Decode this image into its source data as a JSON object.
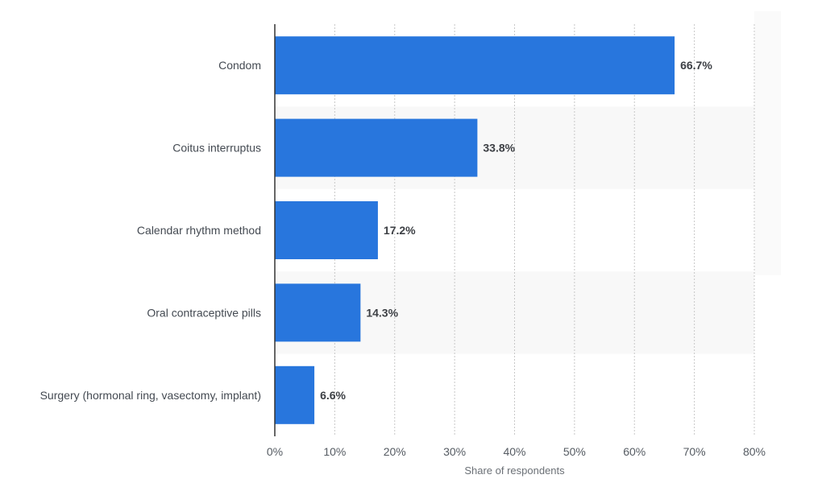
{
  "chart_data": {
    "type": "bar",
    "orientation": "horizontal",
    "categories": [
      "Condom",
      "Coitus interruptus",
      "Calendar rhythm method",
      "Oral contraceptive pills",
      "Surgery (hormonal ring, vasectomy, implant)"
    ],
    "values": [
      66.7,
      33.8,
      17.2,
      14.3,
      6.6
    ],
    "value_labels": [
      "66.7%",
      "33.8%",
      "17.2%",
      "14.3%",
      "6.6%"
    ],
    "xlabel": "Share of respondents",
    "xlim": [
      0,
      80
    ],
    "xticks": [
      0,
      10,
      20,
      30,
      40,
      50,
      60,
      70,
      80
    ],
    "xtick_labels": [
      "0%",
      "10%",
      "20%",
      "30%",
      "40%",
      "50%",
      "60%",
      "70%",
      "80%"
    ],
    "grid": true,
    "bar_color": "#2876dd"
  }
}
